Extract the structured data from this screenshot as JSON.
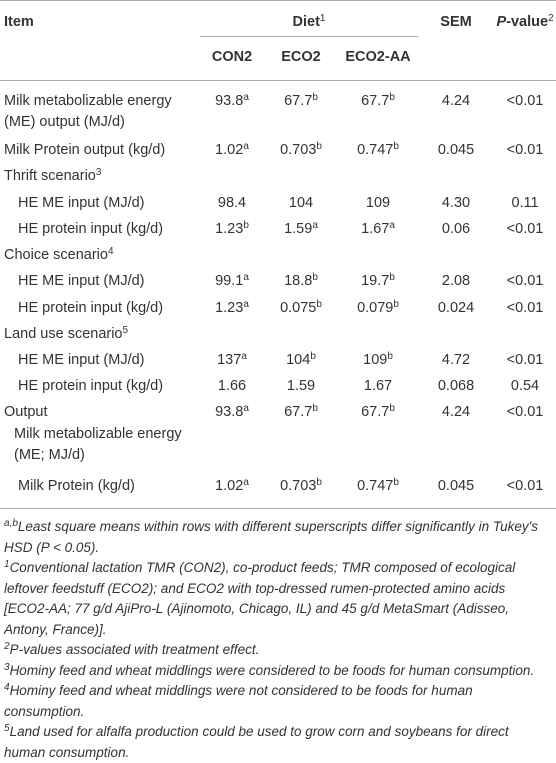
{
  "header": {
    "item": "Item",
    "diet": "Diet",
    "diet_sup": "1",
    "sem": "SEM",
    "p_value_italic": "P",
    "p_value_rest": "-value",
    "p_value_sup": "2",
    "treatments": [
      "CON2",
      "ECO2",
      "ECO2-AA"
    ]
  },
  "rows": [
    {
      "label": "Milk metabolizable energy (ME) output (MJ/d)",
      "values": [
        {
          "text": "93.8",
          "sup": "a"
        },
        {
          "text": "67.7",
          "sup": "b"
        },
        {
          "text": "67.7",
          "sup": "b"
        }
      ],
      "sem": "4.24",
      "p": "<0.01"
    },
    {
      "label": "Milk Protein output (kg/d)",
      "values": [
        {
          "text": "1.02",
          "sup": "a"
        },
        {
          "text": "0.703",
          "sup": "b"
        },
        {
          "text": "0.747",
          "sup": "b"
        }
      ],
      "sem": "0.045",
      "p": "<0.01"
    },
    {
      "label": "Thrift scenario",
      "label_sup": "3"
    },
    {
      "label": "HE ME input (MJ/d)",
      "indent": true,
      "values": [
        {
          "text": "98.4"
        },
        {
          "text": "104"
        },
        {
          "text": "109"
        }
      ],
      "sem": "4.30",
      "p": "0.11"
    },
    {
      "label": "HE protein input (kg/d)",
      "indent": true,
      "values": [
        {
          "text": "1.23",
          "sup": "b"
        },
        {
          "text": "1.59",
          "sup": "a"
        },
        {
          "text": "1.67",
          "sup": "a"
        }
      ],
      "sem": "0.06",
      "p": "<0.01"
    },
    {
      "label": "Choice scenario",
      "label_sup": "4"
    },
    {
      "label": "HE ME input (MJ/d)",
      "indent": true,
      "values": [
        {
          "text": "99.1",
          "sup": "a"
        },
        {
          "text": "18.8",
          "sup": "b"
        },
        {
          "text": "19.7",
          "sup": "b"
        }
      ],
      "sem": "2.08",
      "p": "<0.01"
    },
    {
      "label": "HE protein input (kg/d)",
      "indent": true,
      "values": [
        {
          "text": "1.23",
          "sup": "a"
        },
        {
          "text": "0.075",
          "sup": "b"
        },
        {
          "text": "0.079",
          "sup": "b"
        }
      ],
      "sem": "0.024",
      "p": "<0.01"
    },
    {
      "label": "Land use scenario",
      "label_sup": "5"
    },
    {
      "label": "HE ME input (MJ/d)",
      "indent": true,
      "values": [
        {
          "text": "137",
          "sup": "a"
        },
        {
          "text": "104",
          "sup": "b"
        },
        {
          "text": "109",
          "sup": "b"
        }
      ],
      "sem": "4.72",
      "p": "<0.01"
    },
    {
      "label": "HE protein input (kg/d)",
      "indent": true,
      "values": [
        {
          "text": "1.66"
        },
        {
          "text": "1.59"
        },
        {
          "text": "1.67"
        }
      ],
      "sem": "0.068",
      "p": "0.54"
    },
    {
      "label": "Output",
      "values": [
        {
          "text": "93.8",
          "sup": "a"
        },
        {
          "text": "67.7",
          "sup": "b"
        },
        {
          "text": "67.7",
          "sup": "b"
        }
      ],
      "sem": "4.24",
      "p": "<0.01"
    },
    {
      "label": "Milk metabolizable energy (ME; MJ/d)",
      "indent": true
    },
    {
      "label": "Milk Protein (kg/d)",
      "indent": true,
      "values": [
        {
          "text": "1.02",
          "sup": "a"
        },
        {
          "text": "0.703",
          "sup": "b"
        },
        {
          "text": "0.747",
          "sup": "b"
        }
      ],
      "sem": "0.045",
      "p": "<0.01"
    }
  ],
  "footnotes": [
    {
      "sup": "a,b",
      "text": "Least square means within rows with different superscripts differ significantly in Tukey's HSD (P < 0.05)."
    },
    {
      "sup": "1",
      "text": "Conventional lactation TMR (CON2), co-product feeds; TMR composed of ecological leftover feedstuff (ECO2); and ECO2 with top-dressed rumen-protected amino acids [ECO2-AA; 77 g/d AjiPro-L (Ajinomoto, Chicago, IL) and 45 g/d MetaSmart (Adisseo, Antony, France)]."
    },
    {
      "sup": "2",
      "text": "P-values associated with treatment effect."
    },
    {
      "sup": "3",
      "text": "Hominy feed and wheat middlings were considered to be foods for human consumption."
    },
    {
      "sup": "4",
      "text": "Hominy feed and wheat middlings were not considered to be foods for human consumption."
    },
    {
      "sup": "5",
      "text": "Land used for alfalfa production could be used to grow corn and soybeans for direct human consumption."
    }
  ]
}
